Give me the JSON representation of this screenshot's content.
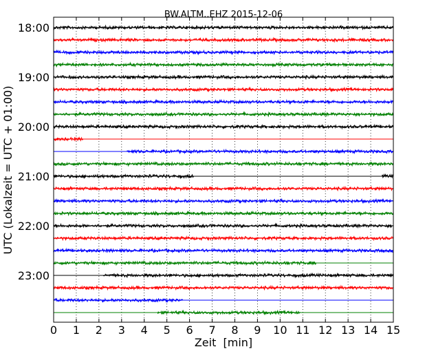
{
  "chart_data": {
    "type": "line",
    "title": "BW.ALTM..EHZ 2015-12-06",
    "xlabel": "Zeit  [min]",
    "ylabel": "UTC (Lokalzeit = UTC + 01:00)",
    "xlim": [
      0,
      15
    ],
    "x_ticks": [
      "0",
      "1",
      "2",
      "3",
      "4",
      "5",
      "6",
      "7",
      "8",
      "9",
      "10",
      "11",
      "12",
      "13",
      "14",
      "15"
    ],
    "y_tick_labels": [
      "18:00",
      "19:00",
      "20:00",
      "21:00",
      "22:00",
      "23:00"
    ],
    "grid": "vertical dotted",
    "trace_colors": [
      "#000000",
      "#ff0000",
      "#0000ff",
      "#008000"
    ],
    "traces": [
      {
        "start": "18:00",
        "segments": [
          [
            0,
            15
          ]
        ]
      },
      {
        "start": "18:15",
        "segments": [
          [
            0,
            15
          ]
        ]
      },
      {
        "start": "18:30",
        "segments": [
          [
            0,
            15
          ]
        ]
      },
      {
        "start": "18:45",
        "segments": [
          [
            0,
            15
          ]
        ]
      },
      {
        "start": "19:00",
        "segments": [
          [
            0,
            15
          ]
        ]
      },
      {
        "start": "19:15",
        "segments": [
          [
            0,
            15
          ]
        ]
      },
      {
        "start": "19:30",
        "segments": [
          [
            0,
            15
          ]
        ]
      },
      {
        "start": "19:45",
        "segments": [
          [
            0,
            15
          ]
        ]
      },
      {
        "start": "20:00",
        "segments": [
          [
            0,
            15
          ]
        ]
      },
      {
        "start": "20:15",
        "segments": [
          [
            0,
            1.3
          ]
        ]
      },
      {
        "start": "20:30",
        "segments": [
          [
            3.25,
            15
          ]
        ]
      },
      {
        "start": "20:45",
        "segments": [
          [
            0,
            15
          ]
        ]
      },
      {
        "start": "21:00",
        "segments": [
          [
            0,
            6.2
          ],
          [
            14.5,
            15
          ]
        ]
      },
      {
        "start": "21:15",
        "segments": [
          [
            0,
            15
          ]
        ]
      },
      {
        "start": "21:30",
        "segments": [
          [
            0,
            15
          ]
        ]
      },
      {
        "start": "21:45",
        "segments": [
          [
            0,
            15
          ]
        ]
      },
      {
        "start": "22:00",
        "segments": [
          [
            0,
            15
          ]
        ]
      },
      {
        "start": "22:15",
        "segments": [
          [
            0,
            15
          ]
        ]
      },
      {
        "start": "22:30",
        "segments": [
          [
            0,
            15
          ]
        ]
      },
      {
        "start": "22:45",
        "segments": [
          [
            0,
            11.6
          ]
        ]
      },
      {
        "start": "23:00",
        "segments": [
          [
            2.2,
            15
          ]
        ]
      },
      {
        "start": "23:15",
        "segments": [
          [
            0,
            15
          ]
        ]
      },
      {
        "start": "23:30",
        "segments": [
          [
            0,
            5.7
          ]
        ]
      },
      {
        "start": "23:45",
        "segments": [
          [
            4.6,
            10.9
          ]
        ]
      }
    ]
  }
}
